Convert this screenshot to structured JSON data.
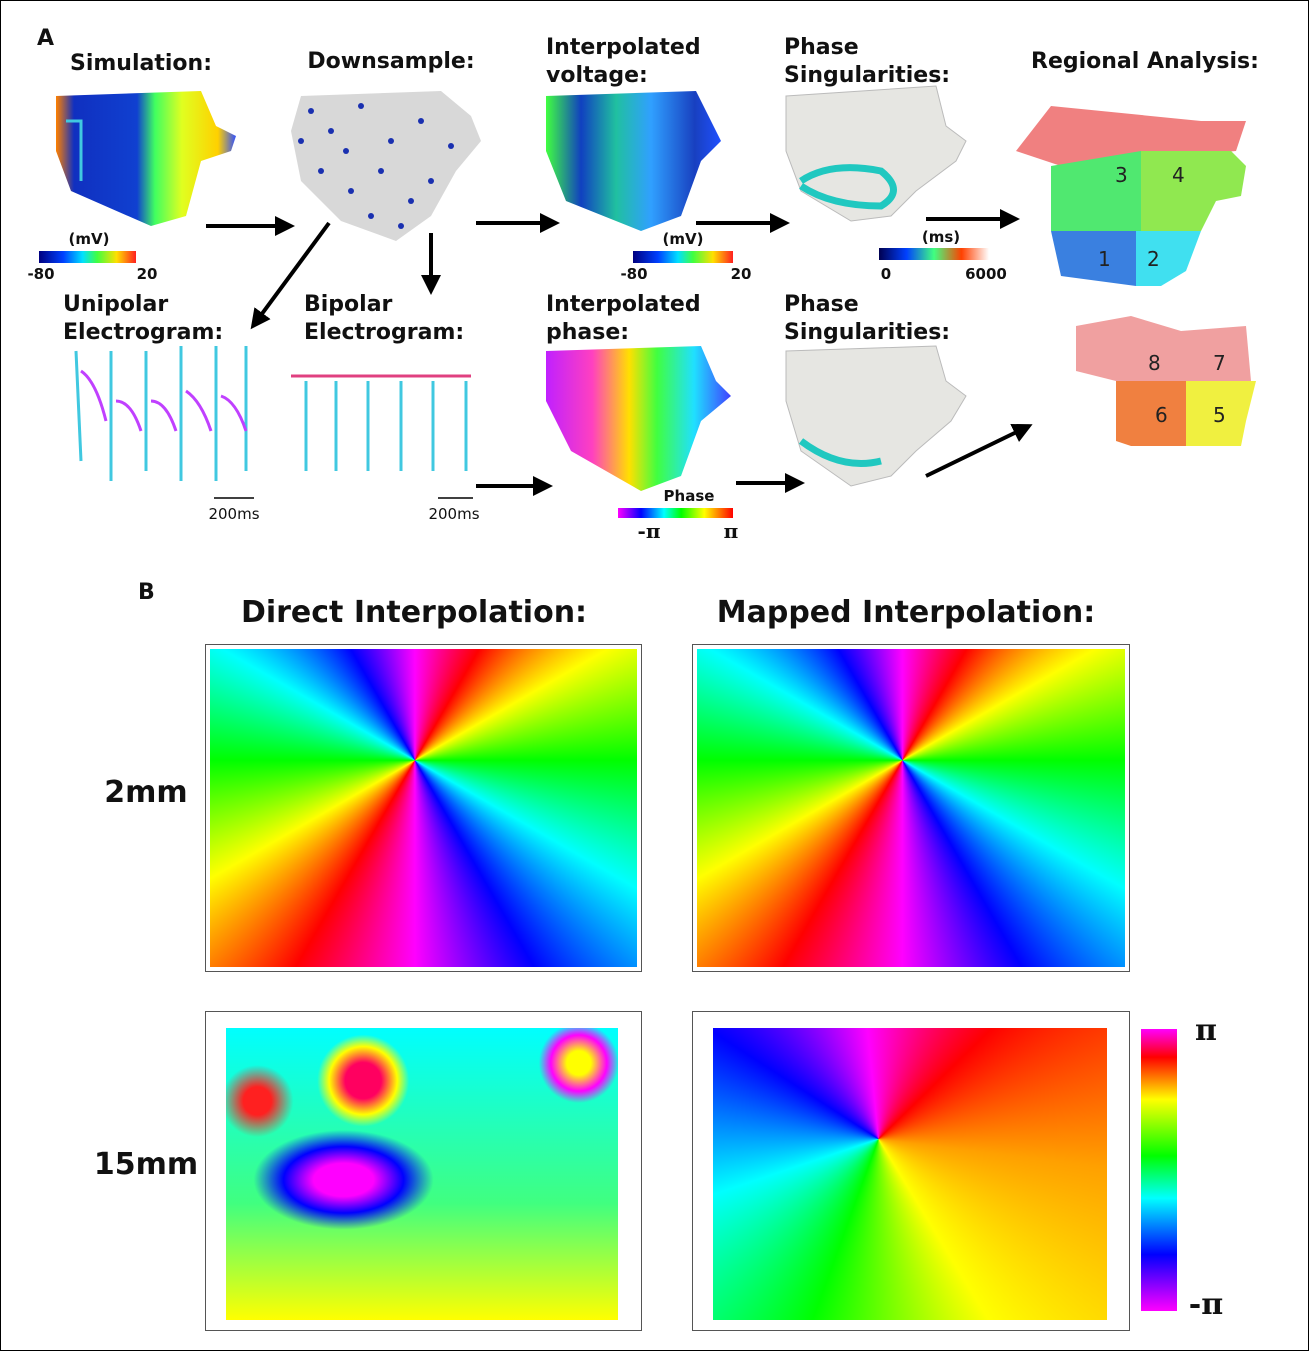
{
  "panel_a": {
    "letter": "A",
    "simulation": "Simulation:",
    "downsample": "Downsample:",
    "interp_voltage": [
      "Interpolated",
      "voltage:"
    ],
    "ps_top": [
      "Phase",
      "Singularities:"
    ],
    "regional": "Regional Analysis:",
    "unipolar": [
      "Unipolar",
      "Electrogram:"
    ],
    "bipolar": [
      "Bipolar",
      "Electrogram:"
    ],
    "interp_phase": [
      "Interpolated",
      "phase:"
    ],
    "ps_bottom": [
      "Phase",
      "Singularities:"
    ],
    "mv_bar_1": {
      "unit": "(mV)",
      "min": "-80",
      "max": "20"
    },
    "mv_bar_2": {
      "unit": "(mV)",
      "min": "-80",
      "max": "20"
    },
    "ms_bar": {
      "unit": "(ms)",
      "min": "0",
      "max": "6000"
    },
    "phase_bar": {
      "title": "Phase",
      "min": "-π",
      "max": "π"
    },
    "scale_unipolar": "200ms",
    "scale_bipolar": "200ms",
    "regions": [
      "1",
      "2",
      "3",
      "4",
      "5",
      "6",
      "7",
      "8"
    ]
  },
  "panel_b": {
    "letter": "B",
    "col_titles": [
      "Direct Interpolation:",
      "Mapped Interpolation:"
    ],
    "row_labels": [
      "2mm",
      "15mm"
    ],
    "colorbar": {
      "max": "π",
      "min": "-π"
    }
  }
}
